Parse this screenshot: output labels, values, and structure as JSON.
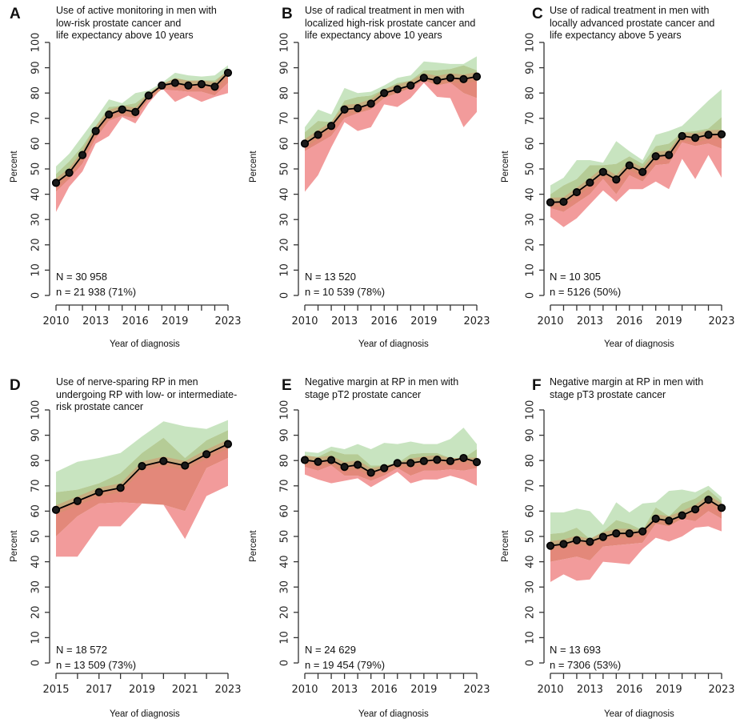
{
  "figure": {
    "colors": {
      "green_outer": "#c8e4c0",
      "green_inner": "#b5cc96",
      "red_outer": "#f29b9b",
      "red_inner": "#e3887a",
      "line": "#000000",
      "axis": "#333333"
    }
  },
  "chart_data": [
    {
      "id": "A",
      "type": "line",
      "letter": "A",
      "title": "Use of active monitoring in men with\nlow-risk prostate cancer and\nlife expectancy above 10 years",
      "xlabel": "Year of diagnosis",
      "ylabel": "Percent",
      "ylim": [
        0,
        100
      ],
      "yticks": [
        0,
        10,
        20,
        30,
        40,
        50,
        60,
        70,
        80,
        90,
        100
      ],
      "xlim": [
        2010,
        2023
      ],
      "xticks": [
        2010,
        2011,
        2012,
        2013,
        2014,
        2015,
        2016,
        2017,
        2018,
        2019,
        2020,
        2021,
        2022,
        2023
      ],
      "xtick_labels": [
        "2010",
        "",
        "",
        "2013",
        "",
        "",
        "2016",
        "",
        "",
        "2019",
        "",
        "",
        "",
        "2023"
      ],
      "N_text": "N = 30 958",
      "n_text": "n = 21 938 (71%)",
      "x": [
        2010,
        2011,
        2012,
        2013,
        2014,
        2015,
        2016,
        2017,
        2018,
        2019,
        2020,
        2021,
        2022,
        2023
      ],
      "national": [
        44.5,
        48.5,
        55.5,
        65,
        71.5,
        73.5,
        72.5,
        79,
        83,
        84,
        83,
        83.5,
        82.5,
        88
      ],
      "range_max": [
        51,
        56,
        63,
        70,
        77.5,
        76,
        80,
        81,
        84,
        88,
        87,
        86.5,
        87,
        91
      ],
      "inner_max": [
        48,
        53,
        59,
        67,
        74.5,
        75,
        76,
        80,
        83.5,
        86,
        85,
        85,
        85,
        89
      ],
      "inner_min": [
        41,
        46,
        52,
        62,
        69,
        71,
        70,
        77.5,
        81.5,
        81,
        80.5,
        80.5,
        79,
        84
      ],
      "range_min": [
        33,
        43,
        49,
        60,
        63,
        70.5,
        68,
        76,
        82,
        76.5,
        79,
        76.5,
        78.5,
        80
      ]
    },
    {
      "id": "B",
      "type": "line",
      "letter": "B",
      "title": "Use of radical treatment in men with\nlocalized high-risk prostate cancer and\nlife expectancy above 10 years",
      "xlabel": "Year of diagnosis",
      "ylabel": "Percent",
      "ylim": [
        0,
        100
      ],
      "yticks": [
        0,
        10,
        20,
        30,
        40,
        50,
        60,
        70,
        80,
        90,
        100
      ],
      "xlim": [
        2010,
        2023
      ],
      "xticks": [
        2010,
        2011,
        2012,
        2013,
        2014,
        2015,
        2016,
        2017,
        2018,
        2019,
        2020,
        2021,
        2022,
        2023
      ],
      "xtick_labels": [
        "2010",
        "",
        "",
        "2013",
        "",
        "",
        "2016",
        "",
        "",
        "2019",
        "",
        "",
        "",
        "2023"
      ],
      "N_text": "N = 13 520",
      "n_text": "n = 10 539 (78%)",
      "x": [
        2010,
        2011,
        2012,
        2013,
        2014,
        2015,
        2016,
        2017,
        2018,
        2019,
        2020,
        2021,
        2022,
        2023
      ],
      "national": [
        60,
        63.5,
        67,
        73.5,
        74,
        75.8,
        80,
        81.5,
        83,
        86,
        85,
        86,
        85.5,
        86.5
      ],
      "range_max": [
        66.5,
        73.5,
        71.5,
        82,
        80,
        80.5,
        83,
        86,
        87,
        92.5,
        92,
        91.5,
        91.5,
        94.5
      ],
      "inner_max": [
        64.5,
        69,
        68.5,
        77,
        78.5,
        79,
        81.5,
        84,
        85,
        89,
        89,
        89.5,
        91,
        89
      ],
      "inner_min": [
        57,
        60,
        63,
        70,
        72,
        73.5,
        78,
        80,
        82,
        85,
        83,
        84,
        80,
        78
      ],
      "range_min": [
        41,
        47.5,
        58.5,
        68.5,
        65,
        66.5,
        75.5,
        74.5,
        78,
        84,
        78.5,
        78,
        66.5,
        72.5
      ]
    },
    {
      "id": "C",
      "type": "line",
      "letter": "C",
      "title": "Use of radical treatment in men with\nlocally advanced prostate cancer and\nlife expectancy above 5 years",
      "xlabel": "Year of diagnosis",
      "ylabel": "Percent",
      "ylim": [
        0,
        100
      ],
      "yticks": [
        0,
        10,
        20,
        30,
        40,
        50,
        60,
        70,
        80,
        90,
        100
      ],
      "xlim": [
        2010,
        2023
      ],
      "xticks": [
        2010,
        2011,
        2012,
        2013,
        2014,
        2015,
        2016,
        2017,
        2018,
        2019,
        2020,
        2021,
        2022,
        2023
      ],
      "xtick_labels": [
        "2010",
        "",
        "",
        "2013",
        "",
        "",
        "2016",
        "",
        "",
        "2019",
        "",
        "",
        "",
        "2023"
      ],
      "N_text": "N = 10 305",
      "n_text": "n = 5126 (50%)",
      "x": [
        2010,
        2011,
        2012,
        2013,
        2014,
        2015,
        2016,
        2017,
        2018,
        2019,
        2020,
        2021,
        2022,
        2023
      ],
      "national": [
        36.8,
        37,
        40.8,
        44.6,
        48.8,
        45.8,
        51.4,
        48.8,
        55,
        55.5,
        63,
        62.3,
        63.5,
        63.7
      ],
      "range_max": [
        43.5,
        46.5,
        53.5,
        53.5,
        52.5,
        61,
        57,
        53.5,
        63.5,
        65,
        67,
        72,
        77,
        81.5
      ],
      "inner_max": [
        40,
        43.5,
        46,
        51.5,
        51.5,
        52,
        55,
        52,
        59,
        60,
        64.5,
        65,
        66,
        70.5
      ],
      "inner_min": [
        34.5,
        33,
        36.5,
        40,
        46,
        40,
        47.5,
        45,
        51.5,
        52,
        60.5,
        59,
        60,
        58
      ],
      "range_min": [
        31,
        27,
        30.5,
        36,
        41.5,
        37,
        42,
        42,
        45,
        42,
        54,
        46,
        55.5,
        46.5
      ]
    },
    {
      "id": "D",
      "type": "line",
      "letter": "D",
      "title": "Use of nerve-sparing RP in men\nundergoing RP with low- or intermediate-\nrisk prostate cancer",
      "xlabel": "Year of diagnosis",
      "ylabel": "Percent",
      "ylim": [
        0,
        100
      ],
      "yticks": [
        0,
        10,
        20,
        30,
        40,
        50,
        60,
        70,
        80,
        90,
        100
      ],
      "xlim": [
        2015,
        2023
      ],
      "xticks": [
        2015,
        2016,
        2017,
        2018,
        2019,
        2020,
        2021,
        2022,
        2023
      ],
      "xtick_labels": [
        "2015",
        "",
        "2017",
        "",
        "2019",
        "",
        "2021",
        "",
        "2023"
      ],
      "N_text": "N = 18 572",
      "n_text": "n = 13 509 (73%)",
      "x": [
        2015,
        2016,
        2017,
        2018,
        2019,
        2020,
        2021,
        2022,
        2023
      ],
      "national": [
        60.5,
        64,
        67.5,
        69.2,
        77.8,
        79.8,
        78,
        82.5,
        86.5
      ],
      "range_max": [
        75.5,
        79.5,
        81,
        83,
        89.5,
        95.5,
        93.5,
        92.5,
        96
      ],
      "inner_max": [
        67.5,
        68.5,
        71,
        75,
        83,
        89,
        81,
        88,
        92
      ],
      "inner_min": [
        50,
        58,
        63,
        63.5,
        63,
        62.5,
        60,
        77,
        81
      ],
      "range_min": [
        42,
        42,
        54,
        54,
        63,
        62.5,
        49,
        66,
        70
      ]
    },
    {
      "id": "E",
      "type": "line",
      "letter": "E",
      "title": "Negative margin at RP in men with\nstage pT2 prostate cancer",
      "xlabel": "Year of diagnosis",
      "ylabel": "Percent",
      "ylim": [
        0,
        100
      ],
      "yticks": [
        0,
        10,
        20,
        30,
        40,
        50,
        60,
        70,
        80,
        90,
        100
      ],
      "xlim": [
        2010,
        2023
      ],
      "xticks": [
        2010,
        2011,
        2012,
        2013,
        2014,
        2015,
        2016,
        2017,
        2018,
        2019,
        2020,
        2021,
        2022,
        2023
      ],
      "xtick_labels": [
        "2010",
        "",
        "",
        "2013",
        "",
        "",
        "2016",
        "",
        "",
        "2019",
        "",
        "",
        "",
        "2023"
      ],
      "N_text": "N = 24 629",
      "n_text": "n = 19 454 (79%)",
      "x": [
        2010,
        2011,
        2012,
        2013,
        2014,
        2015,
        2016,
        2017,
        2018,
        2019,
        2020,
        2021,
        2022,
        2023
      ],
      "national": [
        80.2,
        79.5,
        80.2,
        77.5,
        78.3,
        75.2,
        77,
        79,
        79,
        79.8,
        80.3,
        79.8,
        81,
        79.4
      ],
      "range_max": [
        83.5,
        83,
        85.5,
        84.5,
        86.5,
        84.5,
        87,
        86.5,
        87.5,
        86.5,
        86.5,
        88.5,
        93,
        86.5
      ],
      "inner_max": [
        82,
        81.5,
        84,
        82.5,
        82.5,
        78,
        78,
        79,
        82.5,
        83,
        83,
        81,
        81,
        84.5
      ],
      "inner_min": [
        77.5,
        76,
        78,
        74,
        74,
        72,
        74,
        77,
        74,
        76,
        76,
        76.5,
        76,
        77
      ],
      "range_min": [
        74.5,
        72.5,
        71,
        72,
        73,
        69.5,
        72.5,
        75.5,
        71,
        72.5,
        72.5,
        74,
        72.5,
        70
      ]
    },
    {
      "id": "F",
      "type": "line",
      "letter": "F",
      "title": "Negative margin at RP in men with\nstage pT3 prostate cancer",
      "xlabel": "Year of diagnosis",
      "ylabel": "Percent",
      "ylim": [
        0,
        100
      ],
      "yticks": [
        0,
        10,
        20,
        30,
        40,
        50,
        60,
        70,
        80,
        90,
        100
      ],
      "xlim": [
        2010,
        2023
      ],
      "xticks": [
        2010,
        2011,
        2012,
        2013,
        2014,
        2015,
        2016,
        2017,
        2018,
        2019,
        2020,
        2021,
        2022,
        2023
      ],
      "xtick_labels": [
        "2010",
        "",
        "",
        "2013",
        "",
        "",
        "2016",
        "",
        "",
        "2019",
        "",
        "",
        "",
        "2023"
      ],
      "N_text": "N = 13 693",
      "n_text": "n = 7306 (53%)",
      "x": [
        2010,
        2011,
        2012,
        2013,
        2014,
        2015,
        2016,
        2017,
        2018,
        2019,
        2020,
        2021,
        2022,
        2023
      ],
      "national": [
        46.3,
        47,
        48.5,
        47.9,
        49.8,
        51.2,
        51.2,
        52,
        57,
        56.2,
        58.3,
        60.7,
        64.5,
        61.3
      ],
      "range_max": [
        59.5,
        59.5,
        61,
        60,
        54.5,
        63.5,
        59.5,
        63,
        63.5,
        68,
        68.5,
        67.5,
        70,
        65.5
      ],
      "inner_max": [
        51,
        51.5,
        53.5,
        49,
        52,
        56.5,
        55,
        52.5,
        61.5,
        58,
        63,
        65,
        68.5,
        64
      ],
      "inner_min": [
        40,
        41,
        42,
        40.5,
        46,
        46.5,
        47,
        47.5,
        55,
        54,
        57,
        56,
        60,
        57
      ],
      "range_min": [
        32,
        35,
        32.5,
        33,
        40,
        39.5,
        39,
        45,
        49.5,
        48,
        50,
        53.5,
        54,
        52
      ]
    }
  ]
}
